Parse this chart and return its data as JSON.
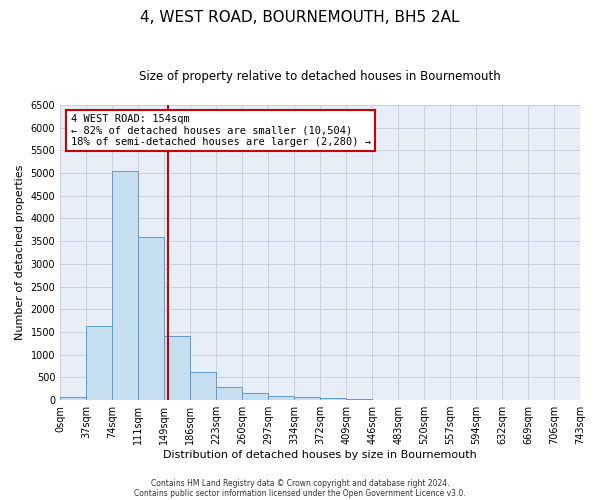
{
  "title": "4, WEST ROAD, BOURNEMOUTH, BH5 2AL",
  "subtitle": "Size of property relative to detached houses in Bournemouth",
  "xlabel": "Distribution of detached houses by size in Bournemouth",
  "ylabel": "Number of detached properties",
  "bin_edges": [
    0,
    37,
    74,
    111,
    149,
    186,
    223,
    260,
    297,
    334,
    372,
    409,
    446,
    483,
    520,
    557,
    594,
    632,
    669,
    706,
    743
  ],
  "bar_heights": [
    75,
    1625,
    5050,
    3600,
    1420,
    610,
    290,
    150,
    100,
    75,
    50,
    30,
    0,
    0,
    0,
    0,
    0,
    0,
    0,
    0
  ],
  "bar_color": "#c5dff0",
  "bar_edge_color": "#5b9bd5",
  "property_line_x": 154,
  "property_line_color": "#cc0000",
  "ylim": [
    0,
    6500
  ],
  "yticks": [
    0,
    500,
    1000,
    1500,
    2000,
    2500,
    3000,
    3500,
    4000,
    4500,
    5000,
    5500,
    6000,
    6500
  ],
  "annotation_title": "4 WEST ROAD: 154sqm",
  "annotation_line1": "← 82% of detached houses are smaller (10,504)",
  "annotation_line2": "18% of semi-detached houses are larger (2,280) →",
  "annotation_box_color": "#cc0000",
  "footnote1": "Contains HM Land Registry data © Crown copyright and database right 2024.",
  "footnote2": "Contains public sector information licensed under the Open Government Licence v3.0.",
  "background_color": "#e8eef8",
  "grid_color": "#b8c8dc",
  "title_fontsize": 11,
  "subtitle_fontsize": 8.5,
  "axis_label_fontsize": 8,
  "tick_fontsize": 7,
  "annotation_fontsize": 7.5,
  "footnote_fontsize": 5.5
}
